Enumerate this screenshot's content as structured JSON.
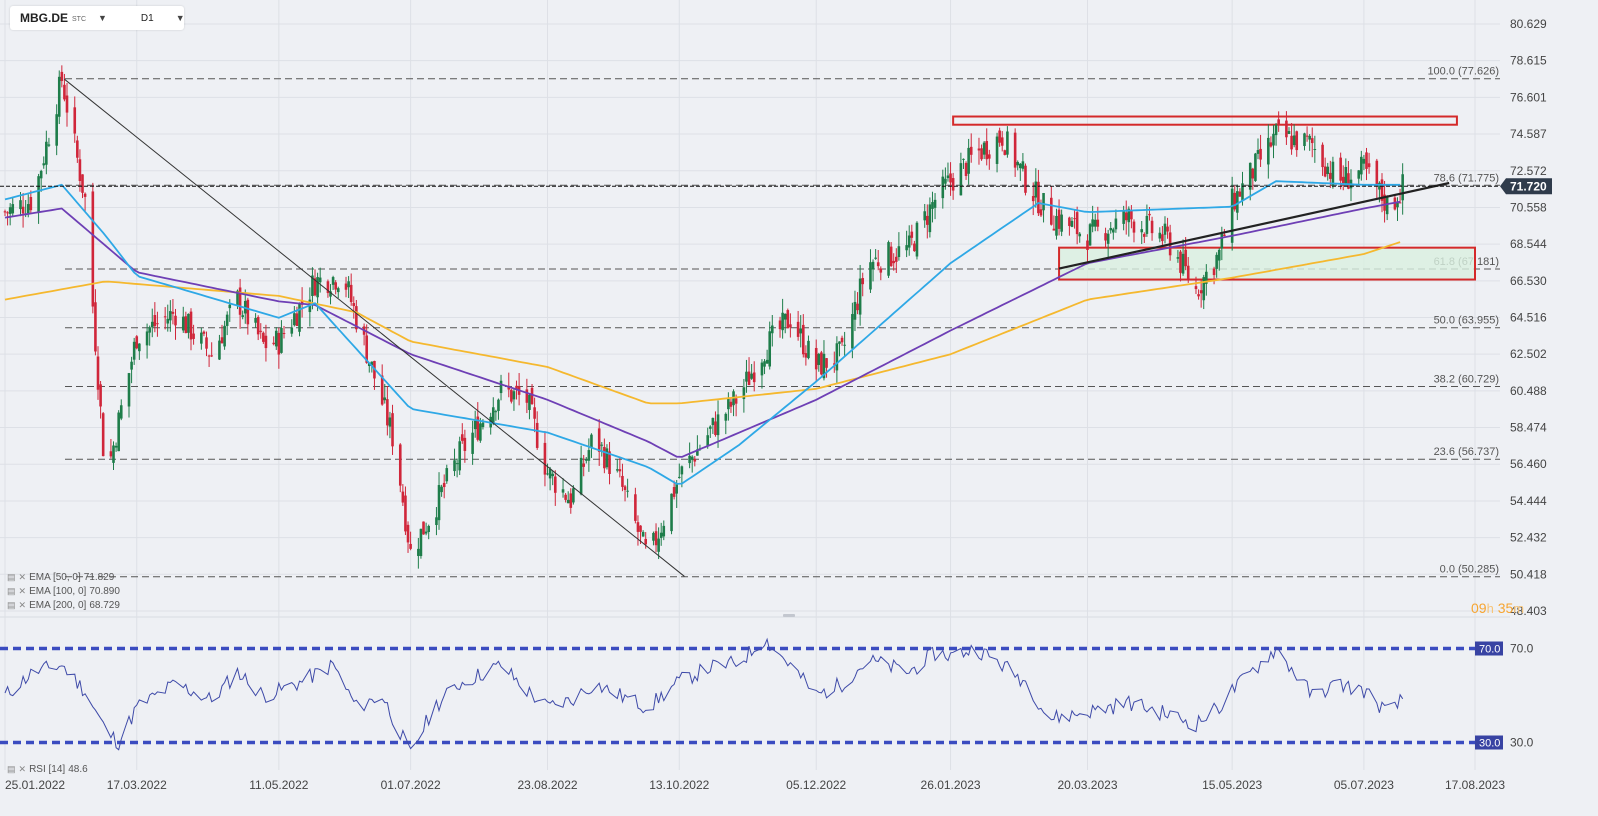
{
  "toolbar": {
    "symbol": "MBG.DE",
    "exchange": "STC",
    "timeframe": "D1"
  },
  "colors": {
    "bull": "#1e7d4a",
    "bear": "#d0263a",
    "ema50": "#2ea8e6",
    "ema100": "#6e3fb5",
    "ema200": "#f5b82e",
    "rsi": "#3e4aa8",
    "rsi_levels": "#3b4cc0",
    "zone_border": "#d42a2a",
    "zone_fill": "#d9f0e0",
    "price_badge": "#2f3b4b"
  },
  "indicators": [
    {
      "label": "EMA [50, 0]",
      "value": "71.829"
    },
    {
      "label": "EMA [100, 0]",
      "value": "70.890"
    },
    {
      "label": "EMA [200, 0]",
      "value": "68.729"
    }
  ],
  "rsi_legend": {
    "label": "RSI [14]",
    "value": "48.6"
  },
  "countdown": {
    "h": "09",
    "hu": "h",
    "m": "35",
    "mu": "m"
  },
  "chart_data": [
    {
      "type": "candlestick",
      "series": "MBG.DE D1",
      "y_ticks": [
        "80.629",
        "78.615",
        "76.601",
        "74.587",
        "72.572",
        "70.558",
        "68.544",
        "66.530",
        "64.516",
        "62.502",
        "60.488",
        "58.474",
        "56.460",
        "54.444",
        "52.432",
        "50.418",
        "48.403"
      ],
      "ylim": [
        48.403,
        80.629
      ],
      "x_ticks": [
        "25.01.2022",
        "17.03.2022",
        "11.05.2022",
        "01.07.2022",
        "23.08.2022",
        "13.10.2022",
        "05.12.2022",
        "26.01.2023",
        "20.03.2023",
        "15.05.2023",
        "05.07.2023",
        "17.08.2023"
      ],
      "last_price": "71.720",
      "fibonacci": [
        {
          "label": "100.0 (77.626)",
          "value": 77.626
        },
        {
          "label": "78.6 (71.775)",
          "value": 71.775
        },
        {
          "label": "61.8 (67.181)",
          "value": 67.181
        },
        {
          "label": "50.0 (63.955)",
          "value": 63.955
        },
        {
          "label": "38.2 (60.729)",
          "value": 60.729
        },
        {
          "label": "23.6 (56.737)",
          "value": 56.737
        },
        {
          "label": "0.0 (50.285)",
          "value": 50.285
        }
      ],
      "price_path": [
        [
          "25.01.2022",
          70.3
        ],
        [
          "05.02.2022",
          71.0
        ],
        [
          "16.02.2022",
          77.6
        ],
        [
          "25.02.2022",
          71.0
        ],
        [
          "05.03.2022",
          55.5
        ],
        [
          "17.03.2022",
          63.5
        ],
        [
          "01.04.2022",
          64.8
        ],
        [
          "15.04.2022",
          62.5
        ],
        [
          "25.04.2022",
          65.5
        ],
        [
          "05.05.2022",
          63.0
        ],
        [
          "11.05.2022",
          63.2
        ],
        [
          "25.05.2022",
          66.5
        ],
        [
          "05.06.2022",
          66.8
        ],
        [
          "15.06.2022",
          62.2
        ],
        [
          "25.06.2022",
          57.5
        ],
        [
          "01.07.2022",
          51.6
        ],
        [
          "10.07.2022",
          54.0
        ],
        [
          "20.07.2022",
          57.0
        ],
        [
          "05.08.2022",
          60.5
        ],
        [
          "15.08.2022",
          60.0
        ],
        [
          "23.08.2022",
          56.0
        ],
        [
          "01.09.2022",
          54.5
        ],
        [
          "10.09.2022",
          58.0
        ],
        [
          "20.09.2022",
          55.5
        ],
        [
          "01.10.2022",
          51.2
        ],
        [
          "13.10.2022",
          55.8
        ],
        [
          "25.10.2022",
          58.3
        ],
        [
          "05.11.2022",
          60.2
        ],
        [
          "15.11.2022",
          62.8
        ],
        [
          "25.11.2022",
          64.5
        ],
        [
          "05.12.2022",
          61.8
        ],
        [
          "15.12.2022",
          62.5
        ],
        [
          "25.12.2022",
          67.5
        ],
        [
          "10.01.2023",
          68.3
        ],
        [
          "20.01.2023",
          71.0
        ],
        [
          "26.01.2023",
          72.0
        ],
        [
          "05.02.2023",
          73.5
        ],
        [
          "15.02.2023",
          74.5
        ],
        [
          "25.02.2023",
          71.8
        ],
        [
          "05.03.2023",
          70.2
        ],
        [
          "20.03.2023",
          69.0
        ],
        [
          "05.04.2023",
          70.0
        ],
        [
          "20.04.2023",
          68.8
        ],
        [
          "01.05.2023",
          66.0
        ],
        [
          "10.05.2023",
          68.0
        ],
        [
          "15.05.2023",
          70.8
        ],
        [
          "01.06.2023",
          74.5
        ],
        [
          "15.06.2023",
          74.0
        ],
        [
          "25.06.2023",
          72.0
        ],
        [
          "05.07.2023",
          72.6
        ],
        [
          "15.07.2023",
          70.5
        ],
        [
          "20.07.2023",
          71.7
        ]
      ],
      "ema50": [
        [
          "25.01.2022",
          71.0
        ],
        [
          "16.02.2022",
          71.8
        ],
        [
          "05.03.2022",
          69.0
        ],
        [
          "17.03.2022",
          66.8
        ],
        [
          "11.05.2022",
          64.5
        ],
        [
          "25.05.2022",
          65.3
        ],
        [
          "01.07.2022",
          59.5
        ],
        [
          "23.08.2022",
          58.2
        ],
        [
          "01.10.2022",
          56.3
        ],
        [
          "13.10.2022",
          55.3
        ],
        [
          "05.11.2022",
          57.5
        ],
        [
          "05.12.2022",
          61.0
        ],
        [
          "26.01.2023",
          67.5
        ],
        [
          "01.03.2023",
          70.8
        ],
        [
          "20.03.2023",
          70.3
        ],
        [
          "15.05.2023",
          70.6
        ],
        [
          "01.06.2023",
          72.0
        ],
        [
          "05.07.2023",
          71.8
        ],
        [
          "20.07.2023",
          71.8
        ]
      ],
      "ema100": [
        [
          "25.01.2022",
          70.0
        ],
        [
          "16.02.2022",
          70.5
        ],
        [
          "17.03.2022",
          67.0
        ],
        [
          "11.05.2022",
          65.4
        ],
        [
          "25.05.2022",
          65.2
        ],
        [
          "01.07.2022",
          62.5
        ],
        [
          "23.08.2022",
          60.0
        ],
        [
          "01.10.2022",
          57.7
        ],
        [
          "13.10.2022",
          56.8
        ],
        [
          "05.12.2022",
          60.0
        ],
        [
          "26.01.2023",
          63.8
        ],
        [
          "20.03.2023",
          67.5
        ],
        [
          "15.05.2023",
          69.0
        ],
        [
          "05.07.2023",
          70.5
        ],
        [
          "20.07.2023",
          70.9
        ]
      ],
      "ema200": [
        [
          "25.01.2022",
          65.5
        ],
        [
          "05.03.2022",
          66.5
        ],
        [
          "11.05.2022",
          65.7
        ],
        [
          "10.06.2022",
          64.8
        ],
        [
          "01.07.2022",
          63.2
        ],
        [
          "23.08.2022",
          61.8
        ],
        [
          "01.10.2022",
          59.8
        ],
        [
          "13.10.2022",
          59.8
        ],
        [
          "05.12.2022",
          60.6
        ],
        [
          "26.01.2023",
          62.5
        ],
        [
          "20.03.2023",
          65.5
        ],
        [
          "15.05.2023",
          66.7
        ],
        [
          "05.07.2023",
          68.0
        ],
        [
          "20.07.2023",
          68.7
        ]
      ]
    },
    {
      "type": "line",
      "series": "RSI [14]",
      "levels": [
        "70.0",
        "30.0"
      ],
      "ylim": [
        20,
        80
      ],
      "values": [
        [
          "25.01.2022",
          50
        ],
        [
          "05.02.2022",
          60
        ],
        [
          "16.02.2022",
          63
        ],
        [
          "25.02.2022",
          52
        ],
        [
          "05.03.2022",
          35
        ],
        [
          "10.03.2022",
          30
        ],
        [
          "17.03.2022",
          45
        ],
        [
          "01.04.2022",
          55
        ],
        [
          "15.04.2022",
          48
        ],
        [
          "25.04.2022",
          60
        ],
        [
          "05.05.2022",
          50
        ],
        [
          "11.05.2022",
          52
        ],
        [
          "20.05.2022",
          56
        ],
        [
          "01.06.2022",
          63
        ],
        [
          "10.06.2022",
          45
        ],
        [
          "20.06.2022",
          50
        ],
        [
          "01.07.2022",
          25
        ],
        [
          "10.07.2022",
          45
        ],
        [
          "20.07.2022",
          55
        ],
        [
          "05.08.2022",
          63
        ],
        [
          "15.08.2022",
          52
        ],
        [
          "23.08.2022",
          45
        ],
        [
          "01.09.2022",
          48
        ],
        [
          "10.09.2022",
          55
        ],
        [
          "20.09.2022",
          50
        ],
        [
          "01.10.2022",
          45
        ],
        [
          "13.10.2022",
          56
        ],
        [
          "25.10.2022",
          62
        ],
        [
          "05.11.2022",
          64
        ],
        [
          "15.11.2022",
          74
        ],
        [
          "25.11.2022",
          63
        ],
        [
          "05.12.2022",
          50
        ],
        [
          "15.12.2022",
          55
        ],
        [
          "25.12.2022",
          65
        ],
        [
          "10.01.2023",
          60
        ],
        [
          "20.01.2023",
          68
        ],
        [
          "26.01.2023",
          67
        ],
        [
          "05.02.2023",
          70
        ],
        [
          "15.02.2023",
          63
        ],
        [
          "25.02.2023",
          55
        ],
        [
          "05.03.2023",
          40
        ],
        [
          "20.03.2023",
          43
        ],
        [
          "05.04.2023",
          47
        ],
        [
          "20.04.2023",
          42
        ],
        [
          "01.05.2023",
          38
        ],
        [
          "10.05.2023",
          45
        ],
        [
          "15.05.2023",
          52
        ],
        [
          "01.06.2023",
          70
        ],
        [
          "15.06.2023",
          50
        ],
        [
          "25.06.2023",
          55
        ],
        [
          "05.07.2023",
          52
        ],
        [
          "15.07.2023",
          42
        ],
        [
          "20.07.2023",
          48.6
        ]
      ]
    }
  ]
}
